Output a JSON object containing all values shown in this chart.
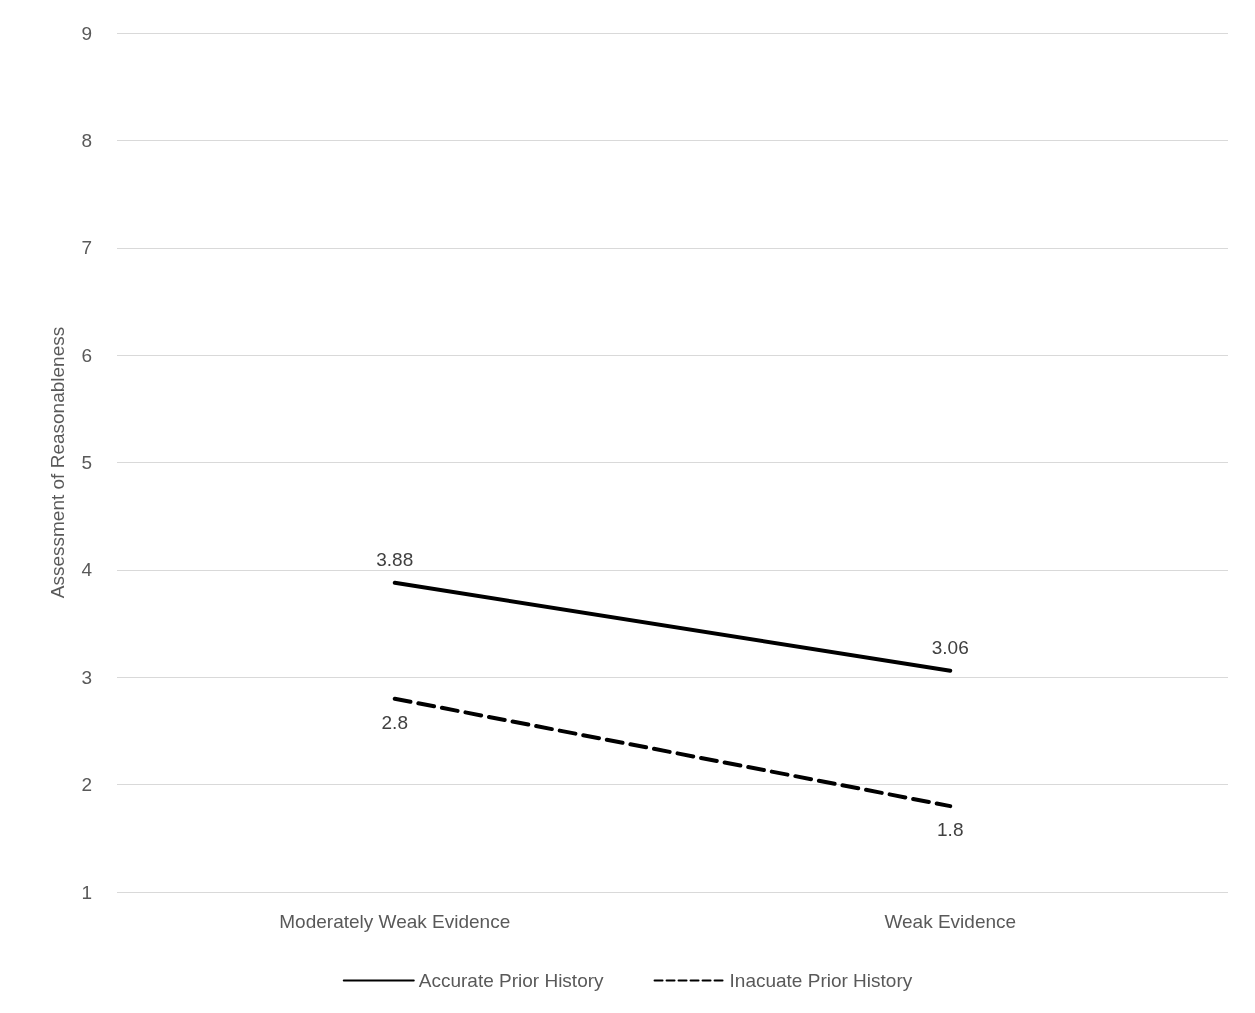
{
  "chart_data": {
    "type": "line",
    "ylabel": "Assessment of Reasonableness",
    "categories": [
      "Moderately Weak Evidence",
      "Weak Evidence"
    ],
    "series": [
      {
        "name": "Accurate Prior History",
        "color": "#000000",
        "values": [
          3.88,
          3.06
        ],
        "line_style": "solid"
      },
      {
        "name": "Inacuate Prior History",
        "color": "#000000",
        "values": [
          2.8,
          1.8
        ],
        "line_style": "dashed"
      }
    ],
    "ylim": [
      1,
      9
    ],
    "yticks": [
      1,
      2,
      3,
      4,
      5,
      6,
      7,
      8,
      9
    ],
    "grid": "y",
    "legend": "bottom",
    "marker": "none",
    "data_labels": true
  }
}
